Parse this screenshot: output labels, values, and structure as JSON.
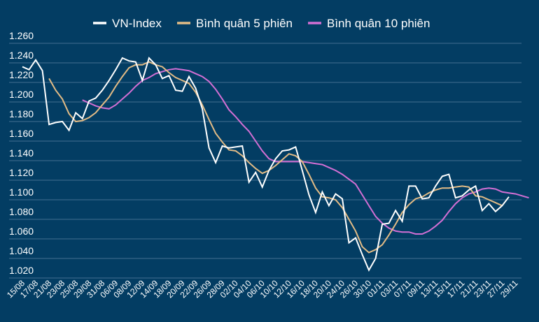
{
  "chart_data": {
    "type": "line",
    "title": "",
    "xlabel": "",
    "ylabel": "",
    "ylim": [
      1.02,
      1.26
    ],
    "yticks": [
      "1.020",
      "1.040",
      "1.060",
      "1.080",
      "1.100",
      "1.120",
      "1.140",
      "1.160",
      "1.180",
      "1.200",
      "1.220",
      "1.240",
      "1.260"
    ],
    "ytick_values": [
      1.02,
      1.04,
      1.06,
      1.08,
      1.1,
      1.12,
      1.14,
      1.16,
      1.18,
      1.2,
      1.22,
      1.24,
      1.26
    ],
    "xtick_labels": [
      "15/08",
      "17/08",
      "21/08",
      "23/08",
      "25/08",
      "29/08",
      "31/08",
      "06/09",
      "08/09",
      "12/09",
      "14/09",
      "18/09",
      "20/09",
      "22/09",
      "26/09",
      "28/09",
      "02/10",
      "04/10",
      "06/10",
      "10/10",
      "12/10",
      "16/10",
      "18/10",
      "20/10",
      "24/10",
      "26/10",
      "30/10",
      "01/11",
      "03/11",
      "07/11",
      "09/11",
      "13/11",
      "15/11",
      "17/11",
      "21/11",
      "23/11",
      "27/11",
      "29/11"
    ],
    "legend": {
      "placement": "top-center"
    },
    "grid": true,
    "series": [
      {
        "name": "VN-Index",
        "color": "#ffffff",
        "start_index": 0,
        "values": [
          1.236,
          1.233,
          1.243,
          1.232,
          1.177,
          1.179,
          1.18,
          1.171,
          1.189,
          1.183,
          1.201,
          1.204,
          1.212,
          1.222,
          1.233,
          1.245,
          1.242,
          1.241,
          1.222,
          1.245,
          1.238,
          1.224,
          1.227,
          1.212,
          1.211,
          1.226,
          1.214,
          1.193,
          1.153,
          1.138,
          1.155,
          1.153,
          1.154,
          1.155,
          1.118,
          1.128,
          1.113,
          1.13,
          1.142,
          1.15,
          1.151,
          1.154,
          1.13,
          1.105,
          1.087,
          1.108,
          1.094,
          1.106,
          1.101,
          1.056,
          1.061,
          1.044,
          1.028,
          1.04,
          1.075,
          1.076,
          1.089,
          1.078,
          1.114,
          1.114,
          1.101,
          1.102,
          1.114,
          1.124,
          1.126,
          1.102,
          1.104,
          1.11,
          1.114,
          1.089,
          1.096,
          1.088,
          1.094,
          1.103
        ]
      },
      {
        "name": "Bình quân 5 phiên",
        "color": "#e2bb85",
        "start_index": 4,
        "values": [
          1.224,
          1.212,
          1.203,
          1.188,
          1.18,
          1.181,
          1.184,
          1.189,
          1.197,
          1.205,
          1.216,
          1.226,
          1.235,
          1.238,
          1.238,
          1.241,
          1.238,
          1.236,
          1.23,
          1.225,
          1.222,
          1.219,
          1.21,
          1.197,
          1.182,
          1.168,
          1.159,
          1.151,
          1.15,
          1.145,
          1.138,
          1.132,
          1.127,
          1.13,
          1.135,
          1.141,
          1.147,
          1.145,
          1.139,
          1.126,
          1.112,
          1.103,
          1.102,
          1.1,
          1.092,
          1.08,
          1.068,
          1.052,
          1.046,
          1.049,
          1.054,
          1.064,
          1.075,
          1.087,
          1.095,
          1.101,
          1.103,
          1.107,
          1.11,
          1.112,
          1.112,
          1.113,
          1.114,
          1.113,
          1.104,
          1.103,
          1.1,
          1.097,
          1.094
        ]
      },
      {
        "name": "Bình quân 10 phiên",
        "color": "#d36fd4",
        "start_index": 9,
        "values": [
          1.202,
          1.199,
          1.196,
          1.194,
          1.193,
          1.197,
          1.203,
          1.209,
          1.216,
          1.222,
          1.225,
          1.229,
          1.231,
          1.233,
          1.234,
          1.233,
          1.232,
          1.229,
          1.226,
          1.221,
          1.213,
          1.203,
          1.192,
          1.185,
          1.177,
          1.17,
          1.16,
          1.15,
          1.142,
          1.139,
          1.139,
          1.139,
          1.139,
          1.139,
          1.138,
          1.137,
          1.136,
          1.133,
          1.13,
          1.126,
          1.121,
          1.116,
          1.105,
          1.094,
          1.083,
          1.076,
          1.071,
          1.068,
          1.067,
          1.067,
          1.065,
          1.065,
          1.068,
          1.073,
          1.079,
          1.088,
          1.096,
          1.102,
          1.106,
          1.108,
          1.111,
          1.112,
          1.111,
          1.108,
          1.107,
          1.106,
          1.104,
          1.102
        ]
      }
    ]
  }
}
